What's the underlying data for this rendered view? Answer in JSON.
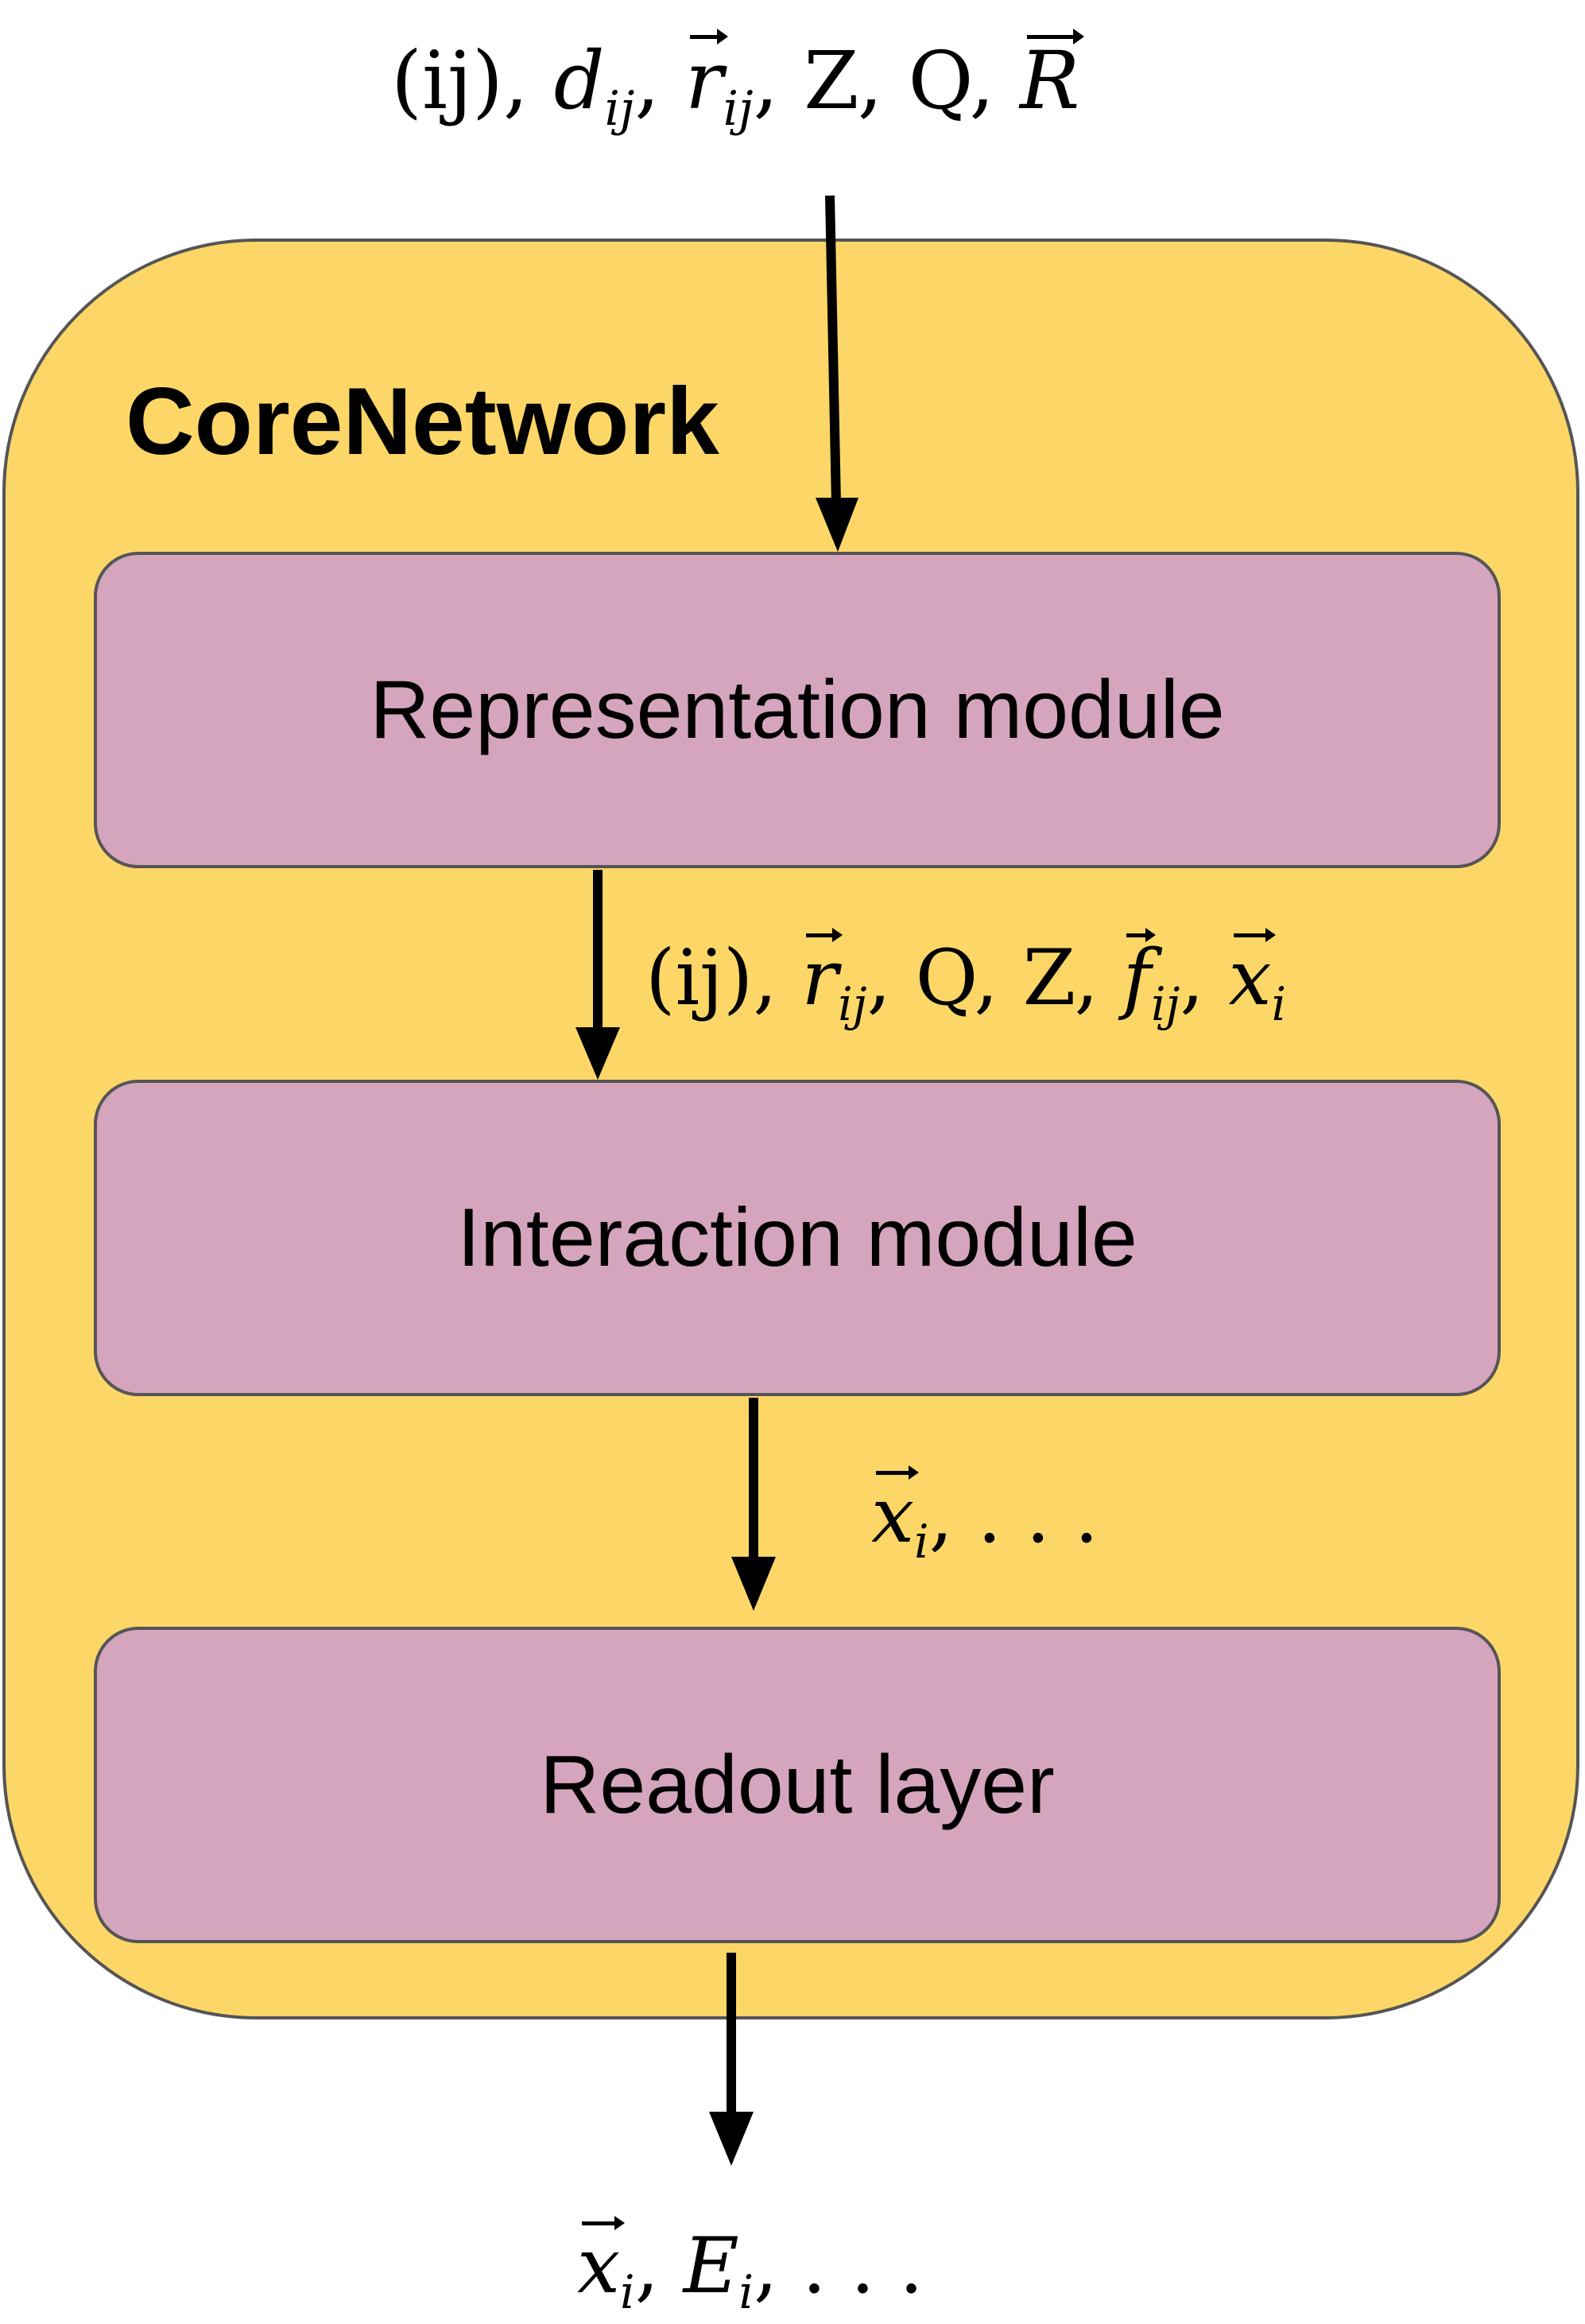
{
  "diagram": {
    "title": "CoreNetwork",
    "input_label": {
      "pair": "(ij), ",
      "d": "d",
      "d_sub": "ij",
      "r": "r",
      "r_sub": "ij",
      "rest": ", Z, Q, ",
      "R": "R"
    },
    "modules": {
      "representation": "Representation module",
      "interaction": "Interaction module",
      "readout": "Readout layer"
    },
    "edge_representation_interaction": {
      "pair": "(ij), ",
      "r": "r",
      "r_sub": "ij",
      "middle": ", Q, Z, ",
      "f": "f",
      "f_sub": "ij",
      "x": "x",
      "x_sub": "i"
    },
    "edge_interaction_readout": {
      "x": "x",
      "x_sub": "i",
      "rest": ", . . ."
    },
    "output_label": {
      "x": "x",
      "x_sub": "i",
      "sep": ", ",
      "E": "E",
      "E_sub": "i",
      "rest": ", . . ."
    },
    "colors": {
      "container_fill": "#fcd767",
      "module_fill": "#d5a5bd",
      "border": "#555555",
      "text": "#000000"
    }
  }
}
